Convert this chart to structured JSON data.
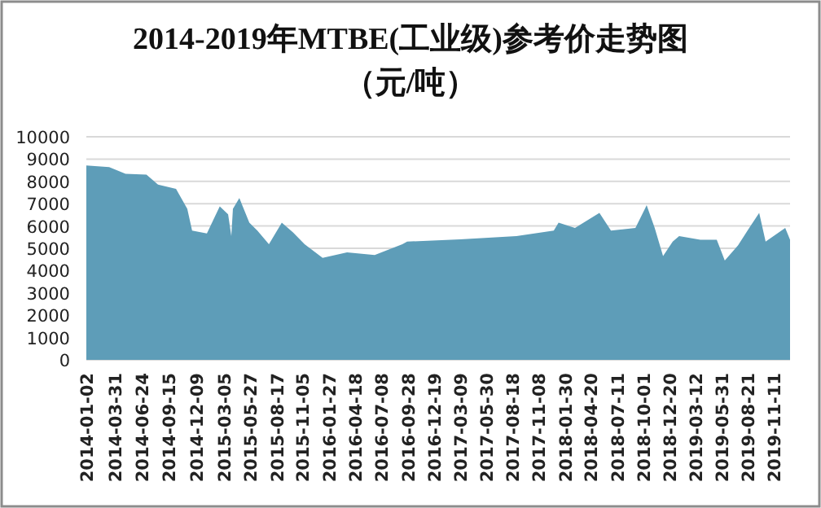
{
  "chart_data": {
    "type": "area",
    "title": "2014-2019年MTBE(工业级)参考价走势图",
    "subtitle": "（元/吨）",
    "x": [
      "2014-01-02",
      "2014-03-14",
      "2014-05-04",
      "2014-07-08",
      "2014-08-13",
      "2014-10-08",
      "2014-11-12",
      "2014-11-27",
      "2015-01-12",
      "2015-02-21",
      "2015-03-19",
      "2015-03-29",
      "2015-04-03",
      "2015-04-23",
      "2015-05-24",
      "2015-06-18",
      "2015-07-24",
      "2015-09-02",
      "2015-10-07",
      "2015-11-12",
      "2016-01-07",
      "2016-03-23",
      "2016-06-17",
      "2016-09-11",
      "2016-09-26",
      "2017-03-10",
      "2017-09-01",
      "2017-12-26",
      "2018-01-10",
      "2018-03-02",
      "2018-05-17",
      "2018-06-22",
      "2018-09-06",
      "2018-10-11",
      "2018-11-05",
      "2018-12-01",
      "2018-12-31",
      "2019-01-20",
      "2019-03-27",
      "2019-05-17",
      "2019-06-11",
      "2019-07-22",
      "2019-08-26",
      "2019-09-26",
      "2019-10-16",
      "2019-12-16",
      "2019-12-31"
    ],
    "series": [
      {
        "color": "#5e9db8",
        "values": [
          8710,
          8640,
          8340,
          8300,
          7860,
          7660,
          6770,
          5790,
          5670,
          6880,
          6520,
          5550,
          6770,
          7250,
          6150,
          5790,
          5180,
          6150,
          5710,
          5180,
          4570,
          4820,
          4700,
          5180,
          5300,
          5400,
          5550,
          5790,
          6150,
          5910,
          6590,
          5790,
          5910,
          6930,
          5910,
          4650,
          5300,
          5550,
          5380,
          5380,
          4450,
          5130,
          5910,
          6590,
          5300,
          5910,
          5380
        ]
      }
    ],
    "xlim": [
      "2014-01-02",
      "2019-12-31"
    ],
    "xticks": [
      "2014-01-02",
      "2014-03-31",
      "2014-06-24",
      "2014-09-15",
      "2014-12-09",
      "2015-03-05",
      "2015-05-27",
      "2015-08-17",
      "2015-11-05",
      "2016-01-27",
      "2016-04-18",
      "2016-07-08",
      "2016-09-28",
      "2016-12-19",
      "2017-03-09",
      "2017-05-30",
      "2017-08-18",
      "2017-11-08",
      "2018-01-30",
      "2018-04-20",
      "2018-07-11",
      "2018-10-01",
      "2018-12-20",
      "2019-03-12",
      "2019-05-31",
      "2019-08-21",
      "2019-11-11"
    ],
    "ylim": [
      0,
      10000
    ],
    "yticks": [
      0,
      1000,
      2000,
      3000,
      4000,
      5000,
      6000,
      7000,
      8000,
      9000,
      10000
    ],
    "grid": "y"
  }
}
